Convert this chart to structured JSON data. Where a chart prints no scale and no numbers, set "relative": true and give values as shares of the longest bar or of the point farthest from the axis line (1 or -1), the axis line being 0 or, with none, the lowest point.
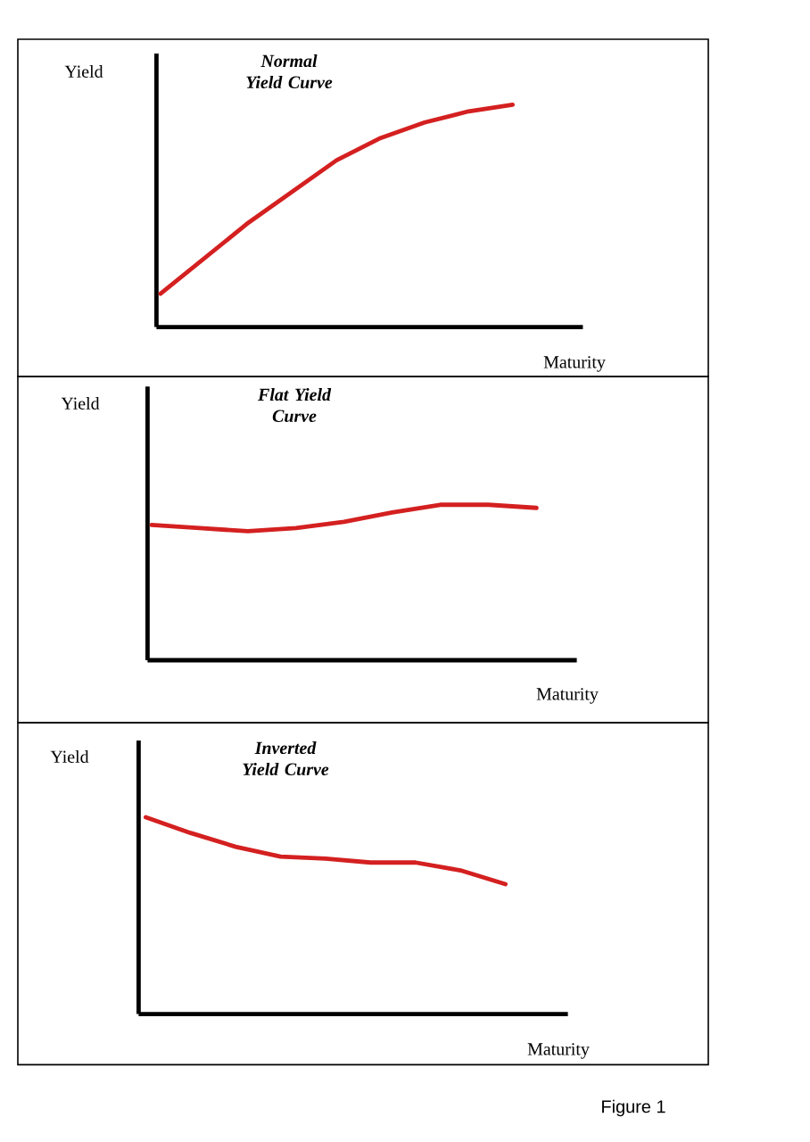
{
  "chart_data": [
    {
      "type": "line",
      "relative": true,
      "title": "Normal Yield Curve",
      "xlabel": "Maturity",
      "ylabel": "Yield",
      "categories": [
        null,
        null,
        null,
        null,
        null,
        null,
        null,
        null,
        null
      ],
      "series": [
        {
          "color": "#d42020",
          "values": [
            0.15,
            0.31,
            0.47,
            0.61,
            0.75,
            0.85,
            0.92,
            0.97,
            1
          ]
        }
      ]
    },
    {
      "type": "line",
      "relative": true,
      "title": "Flat Yield Curve",
      "xlabel": "Maturity",
      "ylabel": "Yield",
      "categories": [
        null,
        null,
        null,
        null,
        null,
        null,
        null,
        null,
        null
      ],
      "series": [
        {
          "color": "#d42020",
          "values": [
            0.87,
            0.85,
            0.83,
            0.85,
            0.89,
            0.95,
            1,
            1,
            0.98
          ]
        }
      ]
    },
    {
      "type": "line",
      "relative": true,
      "title": "Inverted Yield Curve",
      "xlabel": "Maturity",
      "ylabel": "Yield",
      "categories": [
        null,
        null,
        null,
        null,
        null,
        null,
        null,
        null,
        null
      ],
      "series": [
        {
          "color": "#d42020",
          "values": [
            1,
            0.92,
            0.85,
            0.8,
            0.79,
            0.77,
            0.77,
            0.73,
            0.66
          ]
        }
      ],
      "annotations": [
        "Figure 1"
      ]
    }
  ]
}
